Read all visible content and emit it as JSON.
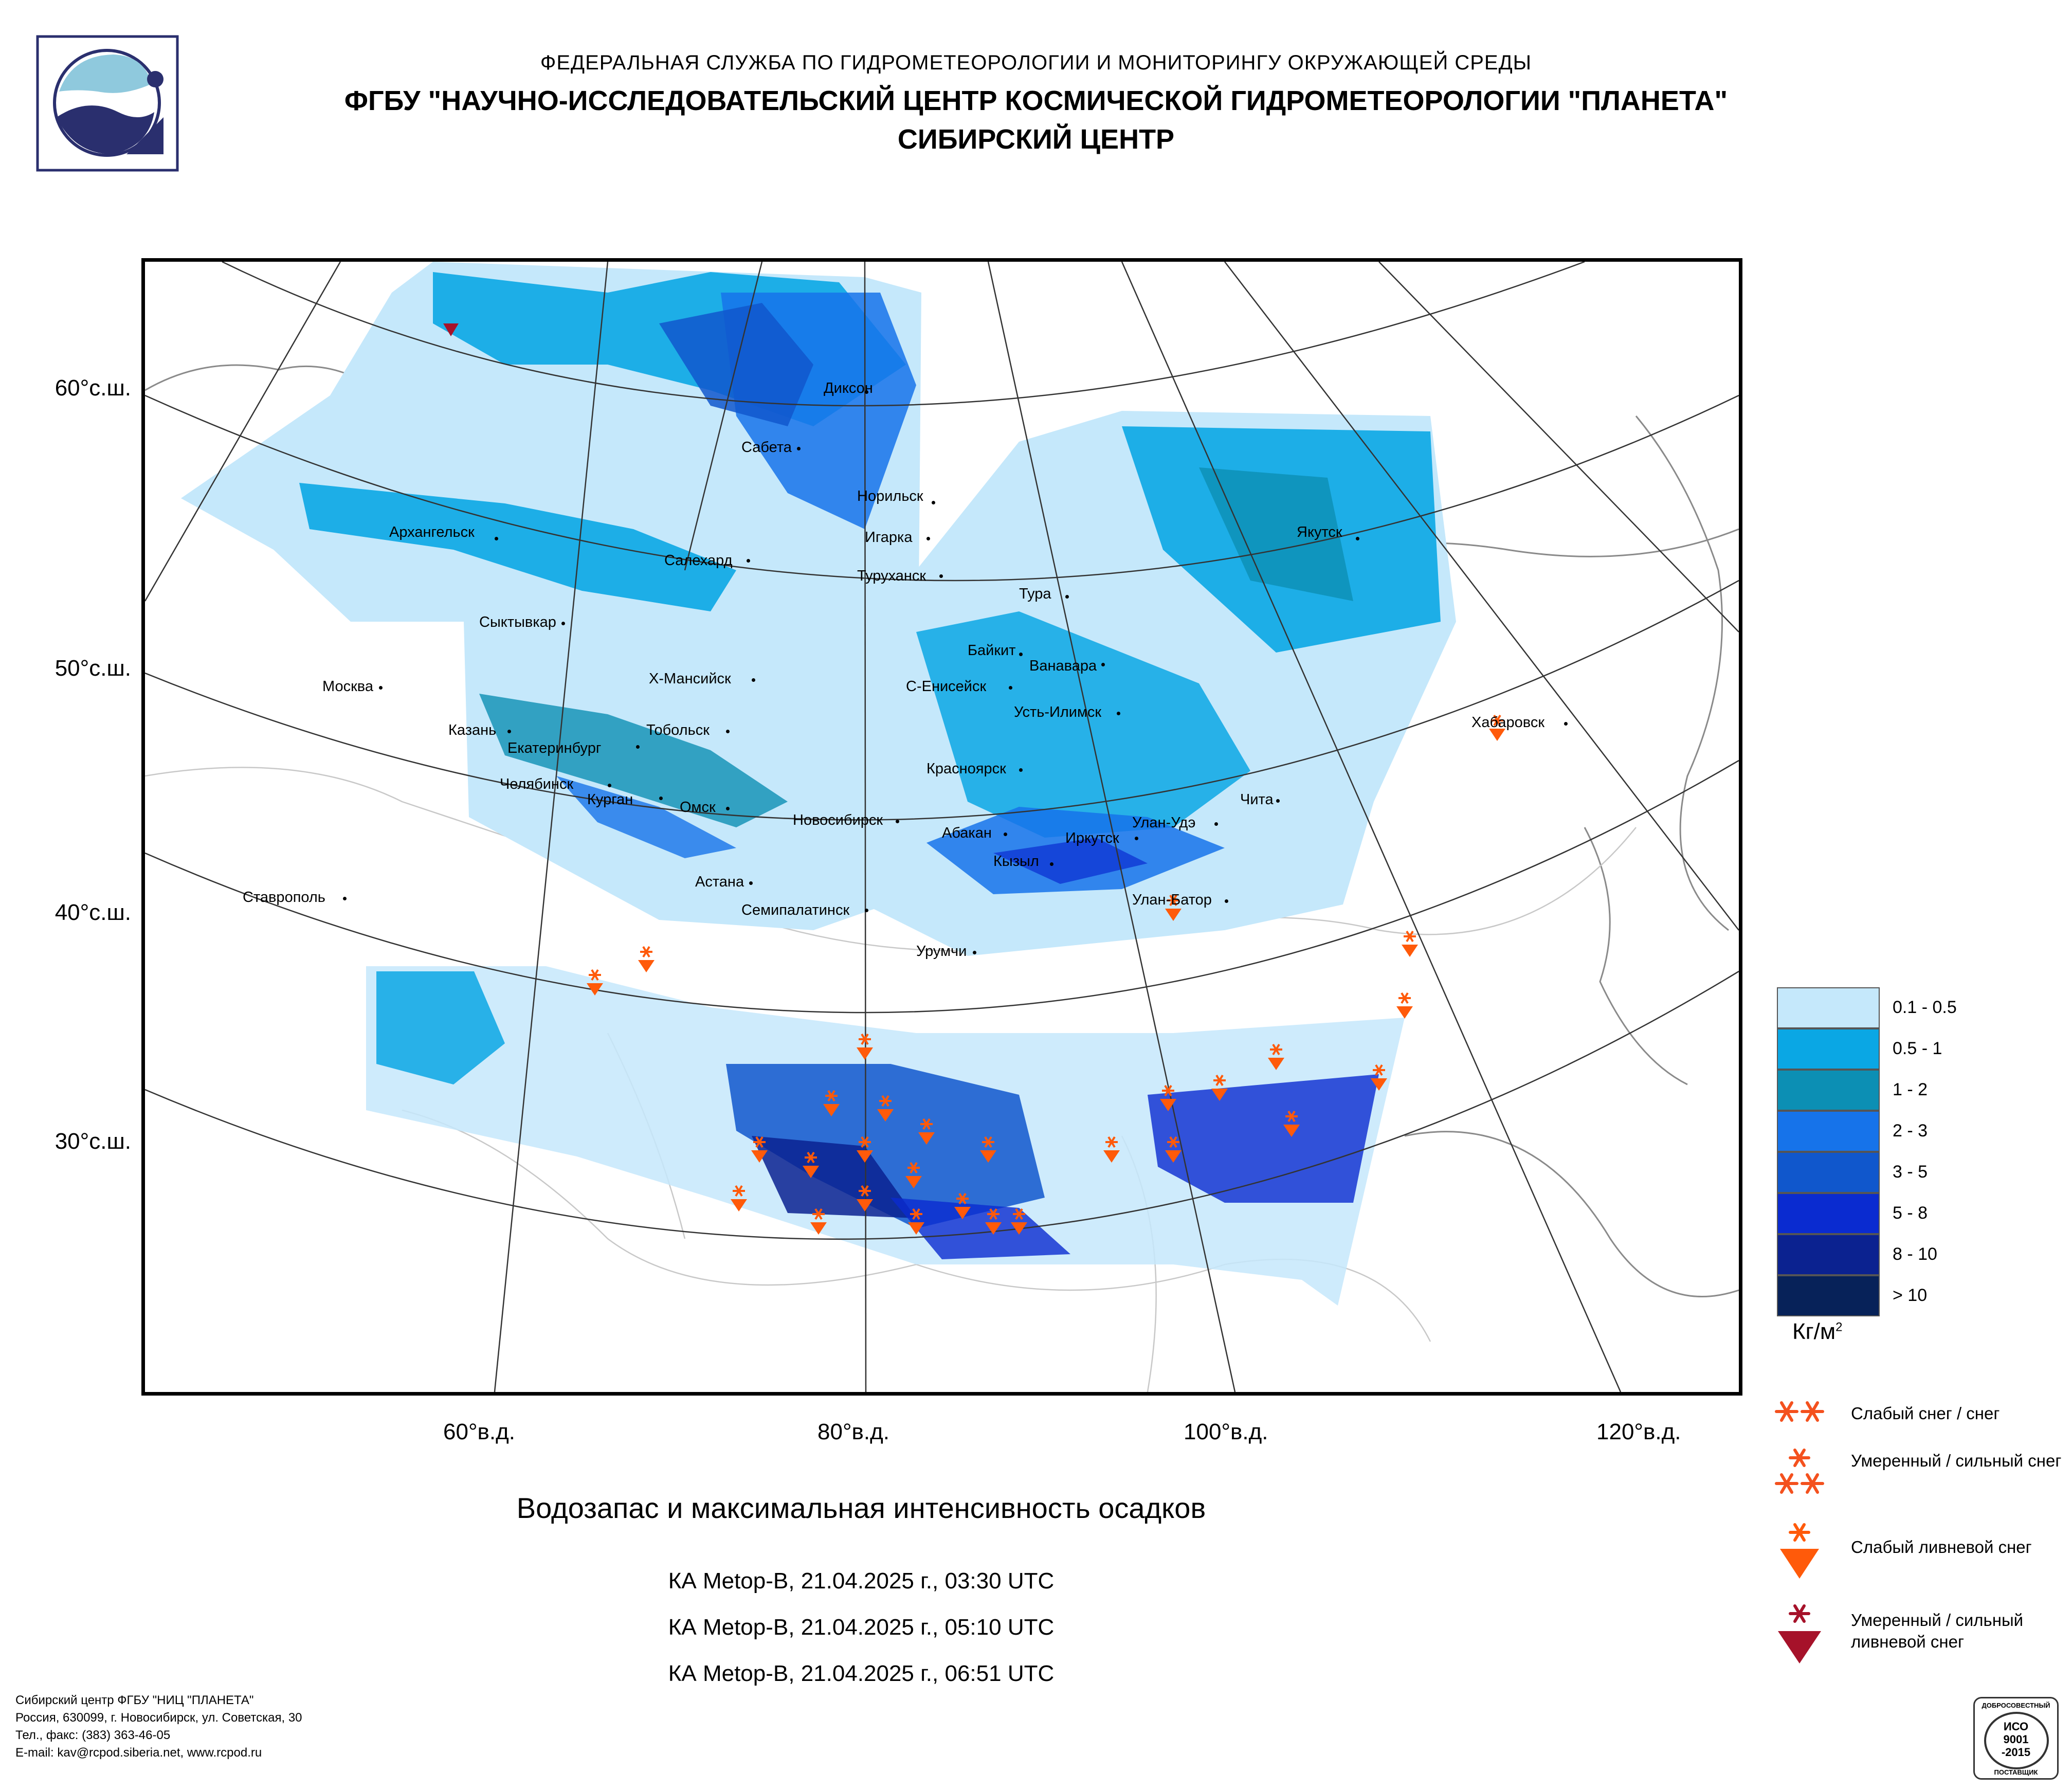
{
  "header": {
    "line1": "ФЕДЕРАЛЬНАЯ СЛУЖБА ПО ГИДРОМЕТЕОРОЛОГИИ И МОНИТОРИНГУ ОКРУЖАЮЩЕЙ СРЕДЫ",
    "line2": "ФГБУ \"НАУЧНО-ИССЛЕДОВАТЕЛЬСКИЙ ЦЕНТР КОСМИЧЕСКОЙ ГИДРОМЕТЕОРОЛОГИИ \"ПЛАНЕТА\"",
    "line3": "СИБИРСКИЙ ЦЕНТР"
  },
  "logo_icon": "planeta-logo-icon",
  "map": {
    "lat_labels": [
      "60°с.ш.",
      "50°с.ш.",
      "40°с.ш.",
      "30°с.ш."
    ],
    "lon_labels": [
      "60°в.д.",
      "80°в.д.",
      "100°в.д.",
      "120°в.д."
    ],
    "cities": [
      "Диксон",
      "Сабета",
      "Норильск",
      "Игарка",
      "Туруханск",
      "Архангельск",
      "Салехард",
      "Якутск",
      "Тура",
      "Сыктывкар",
      "Байкит",
      "Ванавара",
      "Х-Мансийск",
      "С-Енисейск",
      "Москва",
      "Усть-Илимск",
      "Хабаровск",
      "Казань",
      "Тобольск",
      "Екатеринбург",
      "Красноярск",
      "Челябинск",
      "Курган",
      "Омск",
      "Новосибирск",
      "Чита",
      "Абакан",
      "Улан-Удэ",
      "Иркутск",
      "Кызыл",
      "Астана",
      "Ставрополь",
      "Улан-Батор",
      "Семипалатинск",
      "Урумчи"
    ]
  },
  "legend": {
    "classes": [
      {
        "label": "0.1 - 0.5",
        "color": "#c5e8fb"
      },
      {
        "label": "0.5 - 1",
        "color": "#0aa7e4"
      },
      {
        "label": "1 - 2",
        "color": "#0c8fb4"
      },
      {
        "label": "2 - 3",
        "color": "#1673ea"
      },
      {
        "label": "3 - 5",
        "color": "#1057cc"
      },
      {
        "label": "5 - 8",
        "color": "#0a2bd0"
      },
      {
        "label": "8 - 10",
        "color": "#0b2290"
      },
      {
        "label": "> 10",
        "color": "#072259"
      }
    ],
    "unit": "Кг/м",
    "unit_sup": "2",
    "symbols": [
      {
        "label": "Слабый снег / снег",
        "icon": "light-snow-icon"
      },
      {
        "label": "Умеренный / сильный снег",
        "icon": "heavy-snow-icon"
      },
      {
        "label": "Слабый ливневой снег",
        "icon": "light-shower-snow-icon"
      },
      {
        "label": "Умеренный / сильный ливневой снег",
        "icon": "heavy-shower-snow-icon"
      }
    ]
  },
  "title": "Водозапас и максимальная интенсивность осадков",
  "passes": [
    "КА Metop-B, 21.04.2025 г., 03:30 UTC",
    "КА Metop-B, 21.04.2025 г., 05:10 UTC",
    "КА Metop-B, 21.04.2025 г., 06:51 UTC"
  ],
  "footer": {
    "lines": [
      "Сибирский центр ФГБУ \"НИЦ \"ПЛАНЕТА\"",
      "Россия, 630099, г. Новосибирск, ул. Советская, 30",
      "Тел., факс: (383) 363-46-05",
      "E-mail: kav@rcpod.siberia.net, www.rcpod.ru"
    ]
  },
  "iso_badge": {
    "top": "ДОБРОСОВЕСТНЫЙ",
    "line1": "ИСО",
    "line2": "9001",
    "line3": "-2015",
    "bottom": "ПОСТАВЩИК"
  },
  "colors": {
    "light_snow_marker": "#f4511e",
    "shower_snow_marker": "#ff5a0a",
    "heavy_shower_marker": "#a6122a"
  }
}
